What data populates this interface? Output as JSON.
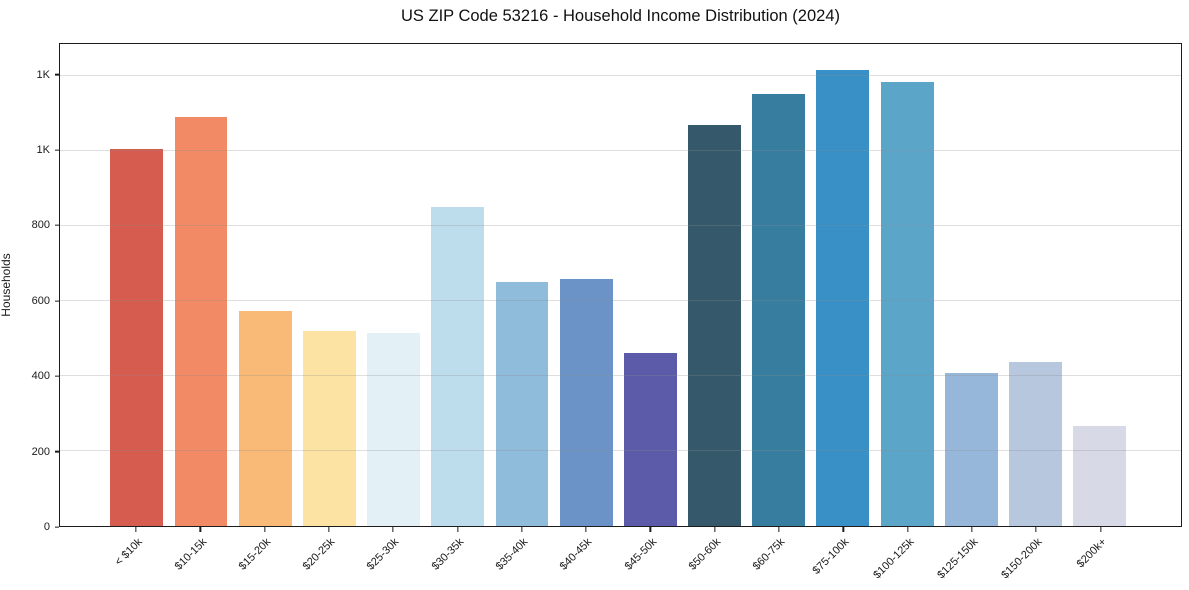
{
  "header": {
    "title": "US ZIP Code 53216 - Household Income Distribution (2024)"
  },
  "chart_data": {
    "type": "bar",
    "title": "US ZIP Code 53216 - Household Income Distribution (2024)",
    "xlabel": "",
    "ylabel": "Households",
    "categories": [
      "< $10k",
      "$10-15k",
      "$15-20k",
      "$20-25k",
      "$25-30k",
      "$30-35k",
      "$35-40k",
      "$40-45k",
      "$45-50k",
      "$50-60k",
      "$60-75k",
      "$75-100k",
      "$100-125k",
      "$125-150k",
      "$150-200k",
      "$200k+"
    ],
    "values": [
      1005,
      1090,
      574,
      520,
      514,
      850,
      651,
      658,
      461,
      1068,
      1151,
      1215,
      1182,
      408,
      437,
      266
    ],
    "bar_colors": [
      "#d65c50",
      "#f28a66",
      "#f9ba77",
      "#fce3a3",
      "#e3f0f6",
      "#bddded",
      "#90bcdb",
      "#6b93c7",
      "#5c5baa",
      "#35596b",
      "#367da0",
      "#3890c6",
      "#5ba5c8",
      "#96b7d9",
      "#b6c7de",
      "#d7dae6"
    ],
    "ylim": [
      0,
      1284
    ],
    "yticks": {
      "values": [
        0,
        200,
        400,
        600,
        800,
        1000,
        1200
      ],
      "labels": [
        "0",
        "200",
        "400",
        "600",
        "800",
        "1K",
        "1K"
      ]
    },
    "grid": "horizontal",
    "legend": "none",
    "axis_color": "#1c1c1c",
    "grid_color": "#8c8c8c",
    "background_color": "#ffffff"
  }
}
